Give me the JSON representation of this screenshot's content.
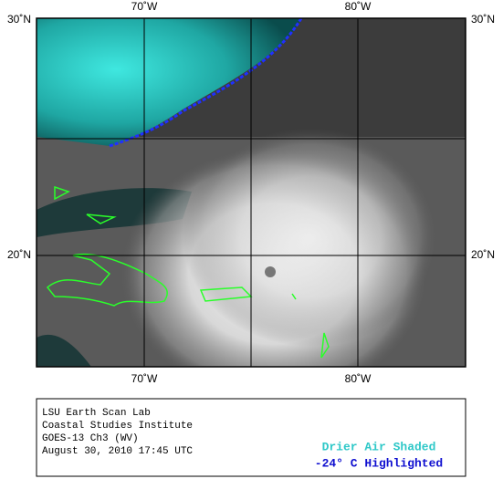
{
  "map": {
    "lon_labels": [
      "70˚W",
      "80˚W"
    ],
    "lat_labels": [
      "30˚N",
      "20˚N"
    ]
  },
  "legend": {
    "credits": [
      "LSU Earth Scan Lab",
      "Coastal Studies Institute",
      "GOES-13 Ch3 (WV)",
      "August 30, 2010 17:45 UTC"
    ],
    "drier_air": "Drier Air Shaded",
    "highlighted": "-24° C Highlighted"
  }
}
